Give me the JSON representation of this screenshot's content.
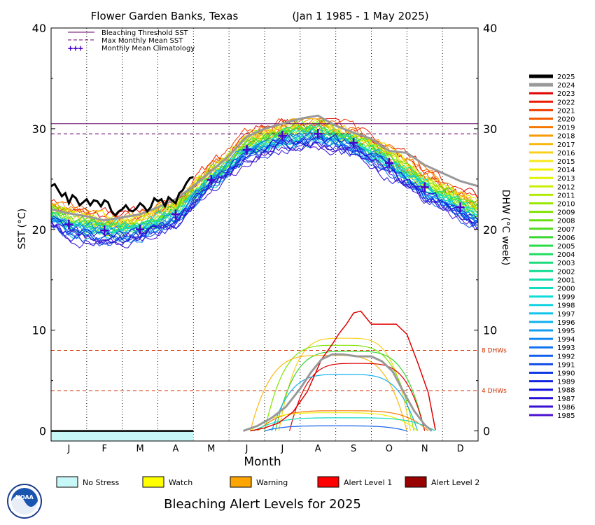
{
  "chart_data": {
    "type": "line",
    "title": "Flower Garden Banks, Texas",
    "date_range": "(Jan 1 1985 - 1 May 2025)",
    "xlabel": "Month",
    "ylabel_left": "SST (°C)",
    "ylabel_right": "DHW (°C week)",
    "ylim": [
      -1,
      40
    ],
    "y_ticks": [
      "0",
      "10",
      "20",
      "30",
      "40"
    ],
    "months": [
      "J",
      "F",
      "M",
      "A",
      "M",
      "J",
      "J",
      "A",
      "S",
      "O",
      "N",
      "D"
    ],
    "legend_lines": [
      {
        "label": "Bleaching Threshold SST",
        "color": "#660066",
        "style": "solid"
      },
      {
        "label": "Max Monthly Mean SST",
        "color": "#660066",
        "style": "dashed"
      },
      {
        "label": "Monthly Mean Climatology",
        "color": "#4b00cc",
        "style": "crosses",
        "marker": "+++"
      }
    ],
    "bleaching_threshold_sst": 30.5,
    "max_monthly_mean_sst": 29.5,
    "dhw_thresholds": [
      {
        "label": "8 DHWs",
        "value": 8,
        "color": "#d03000"
      },
      {
        "label": "4 DHWs",
        "value": 4,
        "color": "#d03000"
      }
    ],
    "climatology": {
      "x": [
        0.5,
        1.5,
        2.5,
        3.5,
        4.5,
        5.5,
        6.5,
        7.5,
        8.5,
        9.5,
        10.5,
        11.5
      ],
      "y": [
        20.5,
        19.9,
        20.0,
        21.5,
        24.9,
        27.9,
        29.3,
        29.5,
        28.6,
        26.6,
        24.2,
        22.2
      ]
    },
    "sst_2025": {
      "x": [
        0,
        0.1,
        0.2,
        0.3,
        0.4,
        0.5,
        0.6,
        0.7,
        0.8,
        0.9,
        1.0,
        1.1,
        1.2,
        1.3,
        1.4,
        1.5,
        1.6,
        1.7,
        1.8,
        1.9,
        2.0,
        2.1,
        2.2,
        2.3,
        2.4,
        2.5,
        2.6,
        2.7,
        2.8,
        2.9,
        3.0,
        3.1,
        3.2,
        3.3,
        3.4,
        3.5,
        3.6,
        3.7,
        3.8,
        3.9,
        4.0
      ],
      "y": [
        24.3,
        24.5,
        23.9,
        23.3,
        23.6,
        22.6,
        23.4,
        23.1,
        22.4,
        22.7,
        23.0,
        22.4,
        22.9,
        22.8,
        22.3,
        22.9,
        22.7,
        21.8,
        21.4,
        21.8,
        22.0,
        22.4,
        21.9,
        21.8,
        22.1,
        22.6,
        22.3,
        21.8,
        22.2,
        23.1,
        22.8,
        23.0,
        22.3,
        23.2,
        22.9,
        22.6,
        23.6,
        23.9,
        24.6,
        25.1,
        25.2
      ]
    },
    "sst_2024": {
      "x": [
        0,
        0.5,
        1,
        1.5,
        2,
        2.5,
        3,
        3.5,
        4,
        4.5,
        5,
        5.5,
        6,
        6.5,
        7,
        7.5,
        8,
        8.5,
        9,
        9.5,
        10,
        10.5,
        11,
        11.5,
        12
      ],
      "y": [
        22.0,
        21.6,
        21.3,
        20.9,
        21.2,
        21.5,
        22.2,
        23.0,
        24.3,
        25.8,
        27.3,
        29.2,
        30.0,
        30.5,
        31.0,
        31.3,
        30.3,
        29.6,
        29.0,
        27.8,
        27.6,
        26.4,
        25.6,
        24.8,
        24.3
      ]
    },
    "dhw_2024": {
      "x": [
        5.4,
        5.8,
        6.2,
        6.6,
        7.0,
        7.3,
        7.6,
        7.9,
        8.2,
        8.6,
        9.0,
        9.3,
        9.6,
        9.9,
        10.2,
        10.5,
        10.7
      ],
      "y": [
        0,
        0.5,
        1.3,
        2.4,
        4.2,
        5.8,
        7.1,
        7.6,
        7.6,
        7.4,
        7.4,
        6.9,
        5.9,
        3.9,
        2.0,
        0.6,
        0
      ]
    },
    "dhw_max_2023": {
      "x": [
        5.6,
        6.0,
        6.4,
        6.8,
        7.2,
        7.6,
        7.9,
        8.1,
        8.3,
        8.5,
        8.7,
        9.0,
        9.3,
        9.7,
        10.0,
        10.3,
        10.6,
        10.8
      ],
      "y": [
        0,
        0.3,
        0.8,
        1.9,
        3.9,
        7.1,
        8.6,
        9.7,
        10.6,
        11.7,
        11.9,
        10.6,
        10.6,
        10.6,
        9.6,
        6.8,
        3.8,
        0.1
      ]
    },
    "stress_bar": {
      "label": "No Stress",
      "from_month": 0,
      "to_month": 4,
      "color": "#c8f7f7"
    },
    "alert_legend": [
      {
        "label": "No Stress",
        "color": "#c8f7f7"
      },
      {
        "label": "Watch",
        "color": "#ffff00"
      },
      {
        "label": "Warning",
        "color": "#ffa500"
      },
      {
        "label": "Alert Level 1",
        "color": "#ff0000"
      },
      {
        "label": "Alert Level 2",
        "color": "#990000"
      }
    ],
    "footer": "Bleaching Alert Levels for 2025",
    "years": [
      {
        "year": "2025",
        "color": "#000000"
      },
      {
        "year": "2024",
        "color": "#999999"
      },
      {
        "year": "2023",
        "color": "#e00000"
      },
      {
        "year": "2022",
        "color": "#ec1800"
      },
      {
        "year": "2021",
        "color": "#f23c00"
      },
      {
        "year": "2020",
        "color": "#f45a00"
      },
      {
        "year": "2019",
        "color": "#f67800"
      },
      {
        "year": "2018",
        "color": "#f89a08"
      },
      {
        "year": "2017",
        "color": "#f8b810"
      },
      {
        "year": "2016",
        "color": "#f8d020"
      },
      {
        "year": "2015",
        "color": "#f8e818"
      },
      {
        "year": "2014",
        "color": "#f0f000"
      },
      {
        "year": "2013",
        "color": "#e0f400"
      },
      {
        "year": "2012",
        "color": "#c8f000"
      },
      {
        "year": "2011",
        "color": "#b0ec00"
      },
      {
        "year": "2010",
        "color": "#98e800"
      },
      {
        "year": "2009",
        "color": "#80e400"
      },
      {
        "year": "2008",
        "color": "#68e010"
      },
      {
        "year": "2007",
        "color": "#50dc20"
      },
      {
        "year": "2006",
        "color": "#38d830"
      },
      {
        "year": "2005",
        "color": "#28dc48"
      },
      {
        "year": "2004",
        "color": "#20dc60"
      },
      {
        "year": "2003",
        "color": "#18dc78"
      },
      {
        "year": "2002",
        "color": "#10dc90"
      },
      {
        "year": "2001",
        "color": "#10dca8"
      },
      {
        "year": "2000",
        "color": "#10dcc0"
      },
      {
        "year": "1999",
        "color": "#10dcd8"
      },
      {
        "year": "1998",
        "color": "#10d4e4"
      },
      {
        "year": "1997",
        "color": "#10c4ec"
      },
      {
        "year": "1996",
        "color": "#10b0f0"
      },
      {
        "year": "1995",
        "color": "#109cf0"
      },
      {
        "year": "1994",
        "color": "#1088f0"
      },
      {
        "year": "1993",
        "color": "#1074f0"
      },
      {
        "year": "1992",
        "color": "#1060ec"
      },
      {
        "year": "1991",
        "color": "#104ce8"
      },
      {
        "year": "1990",
        "color": "#1038e4"
      },
      {
        "year": "1989",
        "color": "#1024e0"
      },
      {
        "year": "1988",
        "color": "#1010dc"
      },
      {
        "year": "1987",
        "color": "#2410d8"
      },
      {
        "year": "1986",
        "color": "#3810d4"
      },
      {
        "year": "1985",
        "color": "#4c10d0"
      }
    ]
  }
}
